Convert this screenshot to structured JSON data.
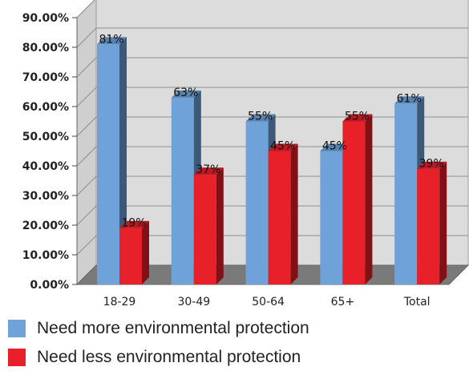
{
  "chart_data": {
    "type": "bar",
    "categories": [
      "18-29",
      "30-49",
      "50-64",
      "65+",
      "Total"
    ],
    "series": [
      {
        "name": "Need more environmental protection",
        "values": [
          81,
          63,
          55,
          45,
          61
        ],
        "labels": [
          "81%",
          "63%",
          "55%",
          "45%",
          "61%"
        ],
        "color": "#6fa2d8"
      },
      {
        "name": "Need less environmental protection",
        "values": [
          19,
          37,
          45,
          55,
          39
        ],
        "labels": [
          "19%",
          "37%",
          "45%",
          "55%",
          "39%"
        ],
        "color": "#e8202a"
      }
    ],
    "ylim": [
      0,
      90
    ],
    "yticks": [
      0,
      10,
      20,
      30,
      40,
      50,
      60,
      70,
      80,
      90
    ],
    "ytick_labels": [
      "0.00%",
      "10.00%",
      "20.00%",
      "30.00%",
      "40.00%",
      "50.00%",
      "60.00%",
      "70.00%",
      "80.00%",
      "90.00%"
    ],
    "grid": true,
    "style": "3d",
    "legend_position": "bottom"
  },
  "legend": {
    "more_label": "Need more environmental protection",
    "less_label": "Need less environmental protection"
  }
}
